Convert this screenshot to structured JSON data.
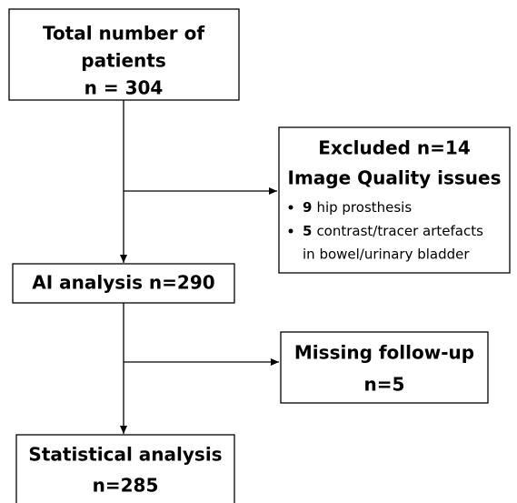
{
  "total": {
    "lines": [
      "Total number of",
      "patients",
      "n = 304"
    ]
  },
  "excluded": {
    "title": "Excluded n=14",
    "subtitle": "Image Quality issues",
    "items": [
      {
        "count": "9",
        "text": "hip prosthesis"
      },
      {
        "count": "5",
        "text": "contrast/tracer artefacts",
        "continuation": "in bowel/urinary bladder"
      }
    ]
  },
  "ai_analysis": {
    "label": "AI analysis n=290"
  },
  "missing": {
    "lines": [
      "Missing follow-up",
      "n=5"
    ]
  },
  "statistical": {
    "lines": [
      "Statistical analysis",
      "n=285"
    ]
  }
}
